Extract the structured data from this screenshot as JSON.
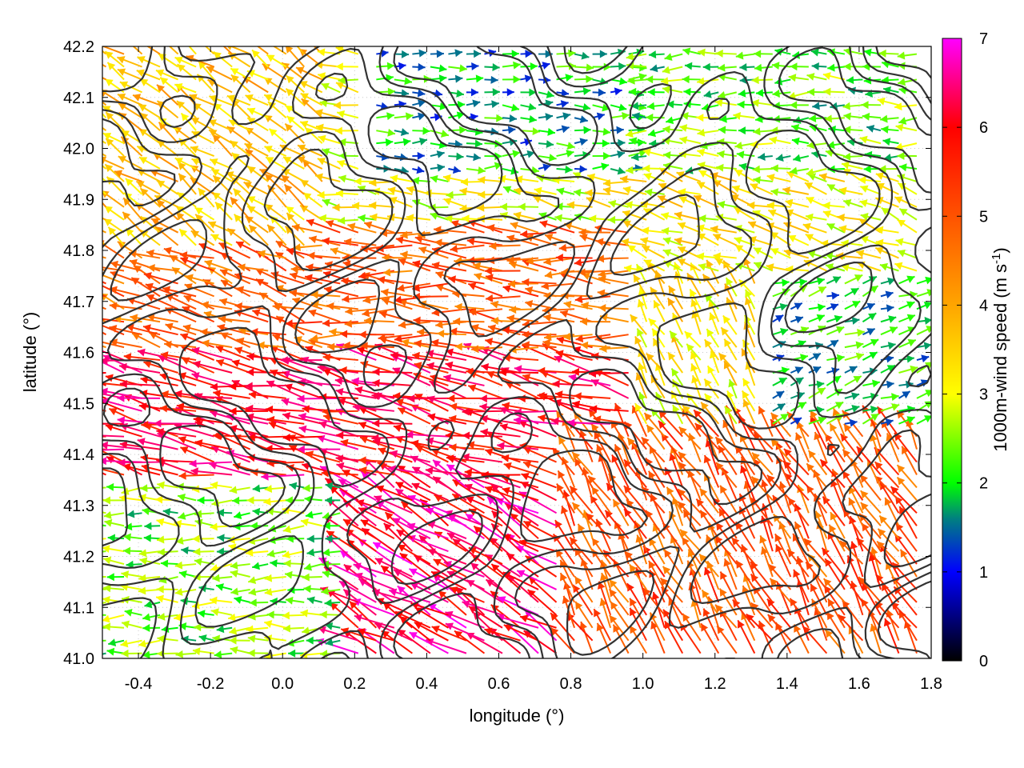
{
  "chart_data": {
    "type": "vector-field",
    "xlabel": "longitude (°)",
    "ylabel": "latitude (°)",
    "xlim": [
      -0.5,
      1.8
    ],
    "ylim": [
      41.0,
      42.2
    ],
    "x_ticks": [
      {
        "value": -0.4,
        "label": "-0.4"
      },
      {
        "value": -0.2,
        "label": "-0.2"
      },
      {
        "value": 0.0,
        "label": "0.0"
      },
      {
        "value": 0.2,
        "label": "0.2"
      },
      {
        "value": 0.4,
        "label": "0.4"
      },
      {
        "value": 0.6,
        "label": "0.6"
      },
      {
        "value": 0.8,
        "label": "0.8"
      },
      {
        "value": 1.0,
        "label": "1.0"
      },
      {
        "value": 1.2,
        "label": "1.2"
      },
      {
        "value": 1.4,
        "label": "1.4"
      },
      {
        "value": 1.6,
        "label": "1.6"
      },
      {
        "value": 1.8,
        "label": "1.8"
      }
    ],
    "y_ticks": [
      {
        "value": 41.0,
        "label": "41.0"
      },
      {
        "value": 41.1,
        "label": "41.1"
      },
      {
        "value": 41.2,
        "label": "41.2"
      },
      {
        "value": 41.3,
        "label": "41.3"
      },
      {
        "value": 41.4,
        "label": "41.4"
      },
      {
        "value": 41.5,
        "label": "41.5"
      },
      {
        "value": 41.6,
        "label": "41.6"
      },
      {
        "value": 41.7,
        "label": "41.7"
      },
      {
        "value": 41.8,
        "label": "41.8"
      },
      {
        "value": 41.9,
        "label": "41.9"
      },
      {
        "value": 42.0,
        "label": "42.0"
      },
      {
        "value": 42.1,
        "label": "42.1"
      },
      {
        "value": 42.2,
        "label": "42.2"
      }
    ],
    "grid": true,
    "colorbar": {
      "label_prefix": "1000m-wind speed (m s",
      "label_exp": "-1",
      "label_suffix": ")",
      "range": [
        0,
        7
      ],
      "ticks": [
        {
          "value": 0,
          "label": "0"
        },
        {
          "value": 1,
          "label": "1"
        },
        {
          "value": 2,
          "label": "2"
        },
        {
          "value": 3,
          "label": "3"
        },
        {
          "value": 4,
          "label": "4"
        },
        {
          "value": 5,
          "label": "5"
        },
        {
          "value": 6,
          "label": "6"
        },
        {
          "value": 7,
          "label": "7"
        }
      ],
      "palette": [
        {
          "value": 0,
          "color": "#000000"
        },
        {
          "value": 1,
          "color": "#0000ff"
        },
        {
          "value": 1.6,
          "color": "#008080"
        },
        {
          "value": 2,
          "color": "#00ff00"
        },
        {
          "value": 3,
          "color": "#ffff00"
        },
        {
          "value": 4,
          "color": "#ffa500"
        },
        {
          "value": 6,
          "color": "#ff0000"
        },
        {
          "value": 7,
          "color": "#ff00ff"
        }
      ]
    },
    "wind_regimes": [
      {
        "lon": [
          -0.5,
          0.15
        ],
        "lat": [
          41.8,
          42.2
        ],
        "speed": 3.7,
        "direction_deg": 145
      },
      {
        "lon": [
          0.25,
          1.0
        ],
        "lat": [
          41.95,
          42.2
        ],
        "speed": 1.8,
        "direction_deg": 0
      },
      {
        "lon": [
          1.0,
          1.8
        ],
        "lat": [
          41.95,
          42.2
        ],
        "speed": 2.3,
        "direction_deg": 180
      },
      {
        "lon": [
          1.0,
          1.8
        ],
        "lat": [
          41.75,
          41.95
        ],
        "speed": 3.2,
        "direction_deg": 160
      },
      {
        "lon": [
          -0.5,
          0.1
        ],
        "lat": [
          41.55,
          41.8
        ],
        "speed": 4.8,
        "direction_deg": 160
      },
      {
        "lon": [
          0.1,
          1.0
        ],
        "lat": [
          41.6,
          41.85
        ],
        "speed": 4.9,
        "direction_deg": 175
      },
      {
        "lon": [
          -0.5,
          1.0
        ],
        "lat": [
          41.35,
          41.6
        ],
        "speed": 6.0,
        "direction_deg": 168
      },
      {
        "lon": [
          1.3,
          1.8
        ],
        "lat": [
          41.45,
          41.75
        ],
        "speed": 1.9,
        "direction_deg": 20
      },
      {
        "lon": [
          1.0,
          1.35
        ],
        "lat": [
          41.45,
          41.75
        ],
        "speed": 3.3,
        "direction_deg": 120
      },
      {
        "lon": [
          -0.5,
          0.2
        ],
        "lat": [
          41.0,
          41.35
        ],
        "speed": 2.4,
        "direction_deg": 180
      },
      {
        "lon": [
          0.2,
          0.8
        ],
        "lat": [
          41.0,
          41.35
        ],
        "speed": 6.3,
        "direction_deg": 150
      },
      {
        "lon": [
          0.8,
          1.8
        ],
        "lat": [
          41.0,
          41.45
        ],
        "speed": 5.0,
        "direction_deg": 120
      }
    ]
  }
}
